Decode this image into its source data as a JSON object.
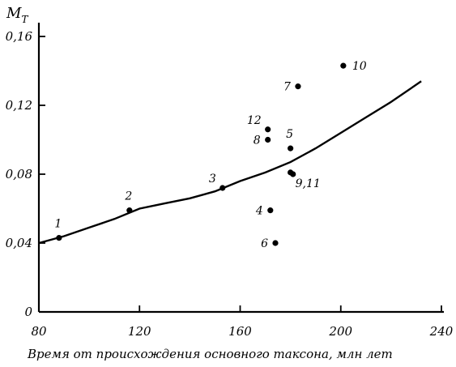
{
  "chart_data": {
    "type": "scatter",
    "ylabel": {
      "main": "M",
      "sub": "T"
    },
    "xlabel": "Время от происхождения основного таксона, млн лет",
    "xlim": [
      80,
      240
    ],
    "ylim": [
      0,
      0.16
    ],
    "x_ticks": [
      {
        "value": 80,
        "label": "80"
      },
      {
        "value": 120,
        "label": "120"
      },
      {
        "value": 160,
        "label": "160"
      },
      {
        "value": 200,
        "label": "200"
      },
      {
        "value": 240,
        "label": "240"
      }
    ],
    "y_ticks": [
      {
        "value": 0,
        "label": "0"
      },
      {
        "value": 0.04,
        "label": "0,04"
      },
      {
        "value": 0.08,
        "label": "0,08"
      },
      {
        "value": 0.12,
        "label": "0,12"
      },
      {
        "value": 0.16,
        "label": "0,16"
      }
    ],
    "points": [
      {
        "label": "1",
        "x": 88,
        "y": 0.043,
        "label_pos": "top"
      },
      {
        "label": "2",
        "x": 116,
        "y": 0.059,
        "label_pos": "top"
      },
      {
        "label": "3",
        "x": 153,
        "y": 0.072,
        "label_pos": "left-top"
      },
      {
        "label": "4",
        "x": 172,
        "y": 0.059,
        "label_pos": "left"
      },
      {
        "label": "5",
        "x": 180,
        "y": 0.095,
        "label_pos": "top"
      },
      {
        "label": "6",
        "x": 174,
        "y": 0.04,
        "label_pos": "left"
      },
      {
        "label": "7",
        "x": 183,
        "y": 0.131,
        "label_pos": "left"
      },
      {
        "label": "8",
        "x": 171,
        "y": 0.1,
        "label_pos": "left"
      },
      {
        "label": "9,11",
        "x": 180,
        "y": 0.081,
        "label_pos": "right-below"
      },
      {
        "label": "10",
        "x": 201,
        "y": 0.143,
        "label_pos": "right"
      },
      {
        "label": "12",
        "x": 171,
        "y": 0.106,
        "label_pos": "left-top"
      }
    ],
    "extra_markers": [
      {
        "x": 181,
        "y": 0.08
      }
    ],
    "trend_curve": [
      [
        80,
        0.04
      ],
      [
        90,
        0.044
      ],
      [
        100,
        0.049
      ],
      [
        110,
        0.054
      ],
      [
        120,
        0.06
      ],
      [
        130,
        0.063
      ],
      [
        140,
        0.066
      ],
      [
        150,
        0.07
      ],
      [
        160,
        0.076
      ],
      [
        170,
        0.081
      ],
      [
        180,
        0.087
      ],
      [
        190,
        0.095
      ],
      [
        200,
        0.104
      ],
      [
        210,
        0.113
      ],
      [
        220,
        0.122
      ],
      [
        232,
        0.134
      ]
    ]
  }
}
